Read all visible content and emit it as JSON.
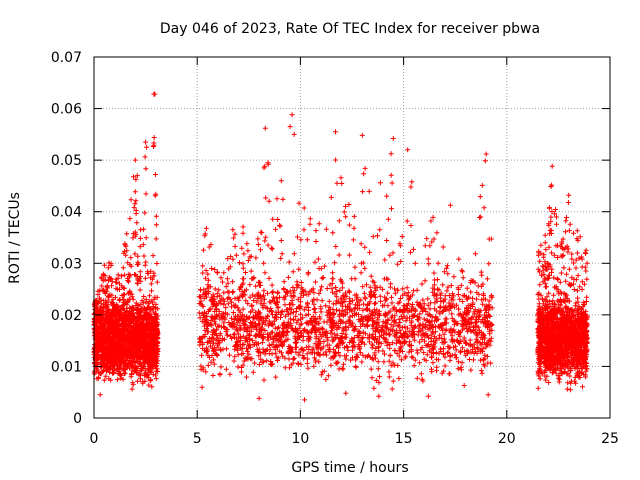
{
  "chart_data": {
    "type": "scatter",
    "title": "Day 046 of 2023, Rate Of TEC Index for receiver pbwa",
    "xlabel": "GPS time / hours",
    "ylabel": "ROTI / TECUs",
    "xlim": [
      0,
      25
    ],
    "ylim": [
      0,
      0.07
    ],
    "x_ticks": [
      "0",
      "5",
      "10",
      "15",
      "20",
      "25"
    ],
    "y_ticks": [
      "0",
      "0.01",
      "0.02",
      "0.03",
      "0.04",
      "0.05",
      "0.06",
      "0.07"
    ],
    "grid": true,
    "legend": "none",
    "marker": "plus",
    "color": "#ff0000",
    "series": [
      {
        "segments": [
          {
            "x_start": 0.0,
            "x_end": 3.1,
            "base_low": 0.005,
            "base_high": 0.021
          },
          {
            "x_start": 5.1,
            "x_end": 19.3,
            "base_low": 0.005,
            "base_high": 0.025
          },
          {
            "x_start": 21.5,
            "x_end": 23.9,
            "base_low": 0.005,
            "base_high": 0.021
          }
        ],
        "envelope": [
          [
            0.0,
            0.022
          ],
          [
            0.3,
            0.026
          ],
          [
            0.5,
            0.034
          ],
          [
            1.0,
            0.028
          ],
          [
            1.3,
            0.03
          ],
          [
            1.6,
            0.04
          ],
          [
            2.0,
            0.05
          ],
          [
            2.2,
            0.034
          ],
          [
            2.5,
            0.054
          ],
          [
            2.8,
            0.026
          ],
          [
            2.9,
            0.063
          ],
          [
            3.1,
            0.025
          ],
          [
            5.1,
            0.026
          ],
          [
            5.5,
            0.04
          ],
          [
            6.0,
            0.028
          ],
          [
            6.8,
            0.039
          ],
          [
            7.5,
            0.036
          ],
          [
            8.0,
            0.046
          ],
          [
            8.3,
            0.056
          ],
          [
            8.8,
            0.042
          ],
          [
            9.5,
            0.058
          ],
          [
            10.0,
            0.045
          ],
          [
            10.5,
            0.041
          ],
          [
            11.0,
            0.045
          ],
          [
            11.5,
            0.052
          ],
          [
            11.7,
            0.056
          ],
          [
            12.2,
            0.047
          ],
          [
            12.5,
            0.044
          ],
          [
            13.0,
            0.055
          ],
          [
            13.5,
            0.042
          ],
          [
            14.0,
            0.048
          ],
          [
            14.5,
            0.054
          ],
          [
            14.8,
            0.041
          ],
          [
            15.2,
            0.052
          ],
          [
            15.7,
            0.045
          ],
          [
            16.3,
            0.041
          ],
          [
            16.8,
            0.036
          ],
          [
            17.3,
            0.042
          ],
          [
            17.8,
            0.03
          ],
          [
            18.2,
            0.038
          ],
          [
            18.7,
            0.044
          ],
          [
            19.0,
            0.051
          ],
          [
            19.3,
            0.034
          ],
          [
            21.5,
            0.032
          ],
          [
            21.9,
            0.036
          ],
          [
            22.2,
            0.049
          ],
          [
            22.6,
            0.036
          ],
          [
            23.0,
            0.043
          ],
          [
            23.5,
            0.036
          ],
          [
            23.9,
            0.032
          ]
        ],
        "outliers": [
          [
            2.9,
            0.0628
          ],
          [
            2.95,
            0.0628
          ],
          [
            2.5,
            0.0535
          ],
          [
            2.55,
            0.0525
          ],
          [
            2.0,
            0.05
          ],
          [
            2.1,
            0.047
          ],
          [
            8.3,
            0.0562
          ],
          [
            9.6,
            0.0588
          ],
          [
            9.5,
            0.0565
          ],
          [
            9.7,
            0.055
          ],
          [
            11.7,
            0.0555
          ],
          [
            13.0,
            0.0548
          ],
          [
            14.5,
            0.0542
          ],
          [
            15.2,
            0.052
          ],
          [
            19.0,
            0.0512
          ],
          [
            22.2,
            0.0488
          ],
          [
            23.0,
            0.0432
          ],
          [
            12.2,
            0.0048
          ],
          [
            16.2,
            0.0042
          ],
          [
            8.0,
            0.0038
          ],
          [
            0.3,
            0.0045
          ],
          [
            19.1,
            0.0045
          ],
          [
            10.2,
            0.0035
          ],
          [
            13.8,
            0.0042
          ]
        ]
      }
    ]
  }
}
